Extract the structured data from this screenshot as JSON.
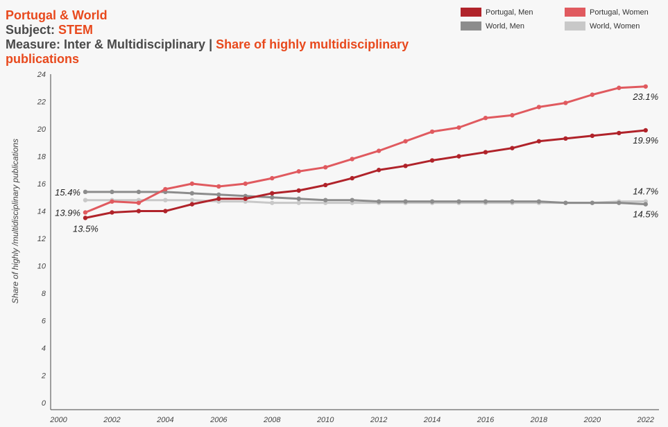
{
  "header": {
    "line1": "Portugal & World",
    "subject_prefix": "Subject: ",
    "subject_value": "STEM",
    "measure_prefix": "Measure: Inter & Multidisciplinary | ",
    "measure_value": "Share of highly multidisciplinary publications"
  },
  "colors": {
    "pt_men": "#b0232a",
    "pt_women": "#e05a5f",
    "world_men": "#8c8c8c",
    "world_women": "#c8c8c8",
    "accent": "#e8491d"
  },
  "chart_data": {
    "type": "line",
    "title": "Share of highly multidisciplinary publications",
    "xlabel": "",
    "ylabel": "Share of highly /multidisciplinary publications",
    "xlim": [
      1999.7,
      2022.5
    ],
    "ylim": [
      0,
      24
    ],
    "yticks": [
      0,
      2,
      4,
      6,
      8,
      10,
      12,
      14,
      16,
      18,
      20,
      22,
      24
    ],
    "xticks": [
      2000,
      2002,
      2004,
      2006,
      2008,
      2010,
      2012,
      2014,
      2016,
      2018,
      2020,
      2022
    ],
    "x": [
      2001,
      2002,
      2003,
      2004,
      2005,
      2006,
      2007,
      2008,
      2009,
      2010,
      2011,
      2012,
      2013,
      2014,
      2015,
      2016,
      2017,
      2018,
      2019,
      2020,
      2021,
      2022
    ],
    "series": [
      {
        "name": "World, Women",
        "color": "#c8c8c8",
        "values": [
          14.8,
          14.8,
          14.8,
          14.8,
          14.8,
          14.7,
          14.7,
          14.6,
          14.6,
          14.6,
          14.6,
          14.6,
          14.6,
          14.6,
          14.6,
          14.6,
          14.6,
          14.6,
          14.6,
          14.6,
          14.7,
          14.7
        ]
      },
      {
        "name": "World, Men",
        "color": "#8c8c8c",
        "values": [
          15.4,
          15.4,
          15.4,
          15.4,
          15.3,
          15.2,
          15.1,
          15.0,
          14.9,
          14.8,
          14.8,
          14.7,
          14.7,
          14.7,
          14.7,
          14.7,
          14.7,
          14.7,
          14.6,
          14.6,
          14.6,
          14.5
        ]
      },
      {
        "name": "Portugal, Women",
        "color": "#e05a5f",
        "values": [
          13.9,
          14.7,
          14.6,
          15.6,
          16.0,
          15.8,
          16.0,
          16.4,
          16.9,
          17.2,
          17.8,
          18.4,
          19.1,
          19.8,
          20.1,
          20.8,
          21.0,
          21.6,
          21.9,
          22.5,
          23.0,
          23.1
        ]
      },
      {
        "name": "Portugal, Men",
        "color": "#b0232a",
        "values": [
          13.5,
          13.9,
          14.0,
          14.0,
          14.5,
          14.9,
          14.9,
          15.3,
          15.5,
          15.9,
          16.4,
          17.0,
          17.3,
          17.7,
          18.0,
          18.3,
          18.6,
          19.1,
          19.3,
          19.5,
          19.7,
          19.9
        ]
      }
    ],
    "annotations": [
      {
        "text": "15.4%",
        "x": 2001,
        "y": 15.4,
        "anchor": "end"
      },
      {
        "text": "13.9%",
        "x": 2001,
        "y": 13.9,
        "anchor": "end"
      },
      {
        "text": "13.5%",
        "x": 2001,
        "y": 13.5,
        "anchor": "start-below"
      },
      {
        "text": "23.1%",
        "x": 2022,
        "y": 23.1,
        "anchor": "below"
      },
      {
        "text": "19.9%",
        "x": 2022,
        "y": 19.9,
        "anchor": "below"
      },
      {
        "text": "14.7%",
        "x": 2022,
        "y": 14.7,
        "anchor": "above"
      },
      {
        "text": "14.5%",
        "x": 2022,
        "y": 14.5,
        "anchor": "below"
      }
    ],
    "legend": {
      "placement": "top-right",
      "items": [
        "Portugal, Men",
        "Portugal, Women",
        "World, Men",
        "World, Women"
      ]
    }
  }
}
